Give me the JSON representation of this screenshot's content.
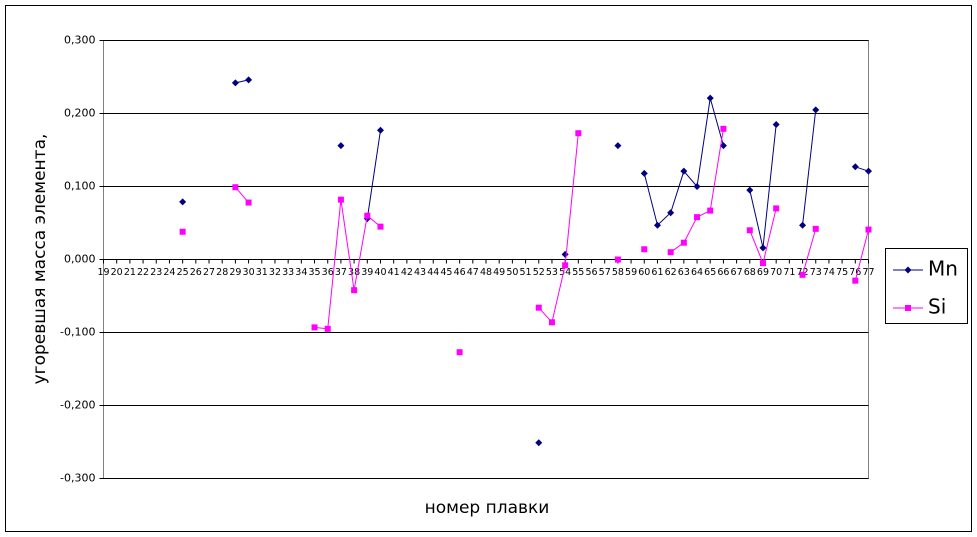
{
  "chart_data": {
    "type": "line",
    "x_label": "номер плавки",
    "y_label": "угоревшая масса элемента,",
    "categories": [
      "19",
      "20",
      "21",
      "22",
      "23",
      "24",
      "25",
      "26",
      "27",
      "28",
      "29",
      "30",
      "31",
      "32",
      "33",
      "34",
      "35",
      "36",
      "37",
      "38",
      "39",
      "40",
      "41",
      "42",
      "43",
      "44",
      "45",
      "46",
      "47",
      "48",
      "49",
      "50",
      "51",
      "52",
      "53",
      "54",
      "55",
      "56",
      "57",
      "58",
      "59",
      "60",
      "61",
      "62",
      "63",
      "64",
      "65",
      "66",
      "67",
      "68",
      "69",
      "70",
      "71",
      "72",
      "73",
      "74",
      "75",
      "76",
      "77"
    ],
    "series": [
      {
        "name": "Mn",
        "color": "#000080",
        "marker": "diamond",
        "values": [
          null,
          null,
          null,
          null,
          null,
          null,
          0.079,
          null,
          null,
          null,
          0.242,
          0.246,
          null,
          null,
          null,
          null,
          null,
          null,
          0.156,
          null,
          0.056,
          0.177,
          null,
          null,
          null,
          null,
          null,
          null,
          null,
          null,
          null,
          null,
          null,
          -0.251,
          null,
          0.007,
          null,
          null,
          null,
          0.156,
          null,
          0.118,
          0.047,
          0.064,
          0.121,
          0.1,
          0.221,
          0.156,
          null,
          0.095,
          0.016,
          0.185,
          null,
          0.047,
          0.205,
          null,
          null,
          0.127,
          0.121
        ]
      },
      {
        "name": "Si",
        "color": "#ff00ff",
        "marker": "square",
        "values": [
          null,
          null,
          null,
          null,
          null,
          null,
          0.038,
          null,
          null,
          null,
          0.099,
          0.078,
          null,
          null,
          null,
          null,
          -0.093,
          -0.095,
          0.082,
          -0.042,
          0.06,
          0.045,
          null,
          null,
          null,
          null,
          null,
          -0.127,
          null,
          null,
          null,
          null,
          null,
          -0.066,
          -0.086,
          -0.008,
          0.173,
          null,
          null,
          0.0,
          null,
          0.014,
          null,
          0.01,
          0.023,
          0.058,
          0.067,
          0.179,
          null,
          0.04,
          -0.005,
          0.07,
          null,
          -0.021,
          0.042,
          null,
          null,
          -0.029,
          0.041
        ]
      }
    ],
    "ylim": [
      -0.3,
      0.3
    ],
    "yticks": [
      {
        "value": -0.3,
        "label": "-0,300"
      },
      {
        "value": -0.2,
        "label": "-0,200"
      },
      {
        "value": -0.1,
        "label": "-0,100"
      },
      {
        "value": 0,
        "label": "0,000"
      },
      {
        "value": 0.1,
        "label": "0,100"
      },
      {
        "value": 0.2,
        "label": "0,200"
      },
      {
        "value": 0.3,
        "label": "0,300"
      }
    ],
    "grid": true,
    "legend": "right"
  }
}
